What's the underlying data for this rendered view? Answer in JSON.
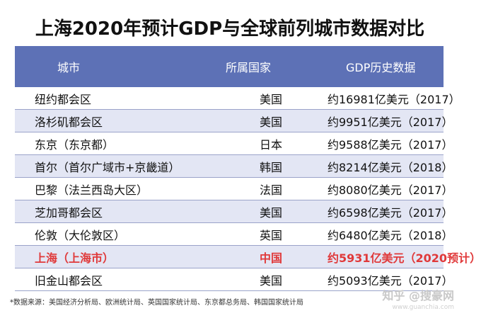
{
  "title": "上海2020年预计GDP与全球前列城市数据对比",
  "table": {
    "headers": [
      "城市",
      "所属国家",
      "GDP历史数据"
    ],
    "rows": [
      {
        "city": "纽约都会区",
        "country": "美国",
        "gdp": "约16981亿美元（2017）",
        "highlight": false
      },
      {
        "city": "洛杉矶都会区",
        "country": "美国",
        "gdp": "约9951亿美元（2017）",
        "highlight": false
      },
      {
        "city": "东京（东京都）",
        "country": "日本",
        "gdp": "约9588亿美元（2017）",
        "highlight": false
      },
      {
        "city": "首尔（首尔广域市+京畿道）",
        "country": "韩国",
        "gdp": "约8214亿美元（2018）",
        "highlight": false
      },
      {
        "city": "巴黎（法兰西岛大区）",
        "country": "法国",
        "gdp": "约8080亿美元（2017）",
        "highlight": false
      },
      {
        "city": "芝加哥都会区",
        "country": "美国",
        "gdp": "约6598亿美元（2017）",
        "highlight": false
      },
      {
        "city": "伦敦（大伦敦区）",
        "country": "英国",
        "gdp": "约6480亿美元（2018）",
        "highlight": false
      },
      {
        "city": "上海（上海市）",
        "country": "中国",
        "gdp": "约5931亿美元（2020预计）",
        "highlight": true
      },
      {
        "city": "旧金山都会区",
        "country": "美国",
        "gdp": "约5093亿美元（2017）",
        "highlight": false
      }
    ]
  },
  "footnote": "*数据来源：美国经济分析局、欧洲统计局、英国国家统计局、东京都总务局、韩国国家统计局",
  "watermark": {
    "main": "知乎 @搜豪网",
    "sub": "www.guanchia.com"
  },
  "colors": {
    "header_bg": "#5d71b6",
    "alt_row_bg": "#e3e6f4",
    "highlight_text": "#e0393a"
  }
}
